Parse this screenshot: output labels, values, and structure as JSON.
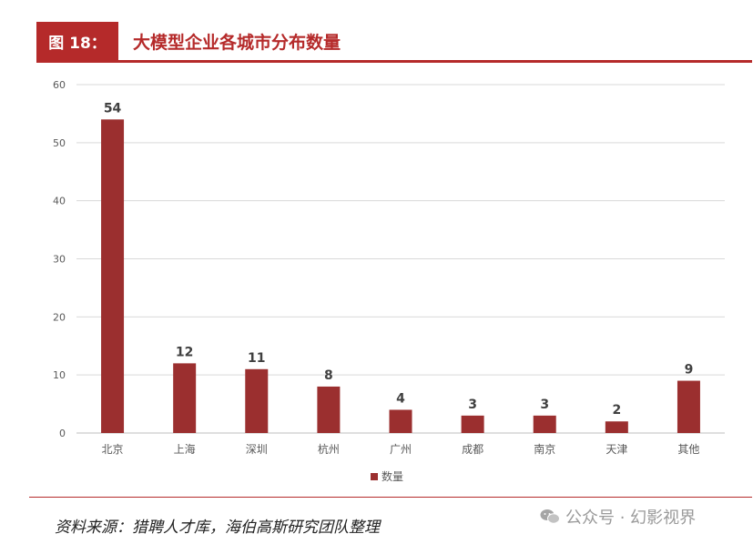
{
  "header": {
    "figure_label": "图 18：",
    "title": "大模型企业各城市分布数量"
  },
  "chart_data": {
    "type": "bar",
    "categories": [
      "北京",
      "上海",
      "深圳",
      "杭州",
      "广州",
      "成都",
      "南京",
      "天津",
      "其他"
    ],
    "series": [
      {
        "name": "数量",
        "values": [
          54,
          12,
          11,
          8,
          4,
          3,
          3,
          2,
          9
        ]
      }
    ],
    "yticks": [
      "0",
      "10",
      "20",
      "30",
      "40",
      "50",
      "60"
    ],
    "ylim": [
      0,
      60
    ],
    "grid": true,
    "legend_position": "bottom",
    "data_labels": true,
    "colors": {
      "bar": "#9b2f2f",
      "accent": "#b52a2a",
      "grid": "#d9d9d9"
    }
  },
  "footer": {
    "source": "资料来源：猎聘人才库，海伯高斯研究团队整理",
    "watermark": "公众号 · 幻影视界",
    "watermark_icon": "wechat-icon"
  }
}
